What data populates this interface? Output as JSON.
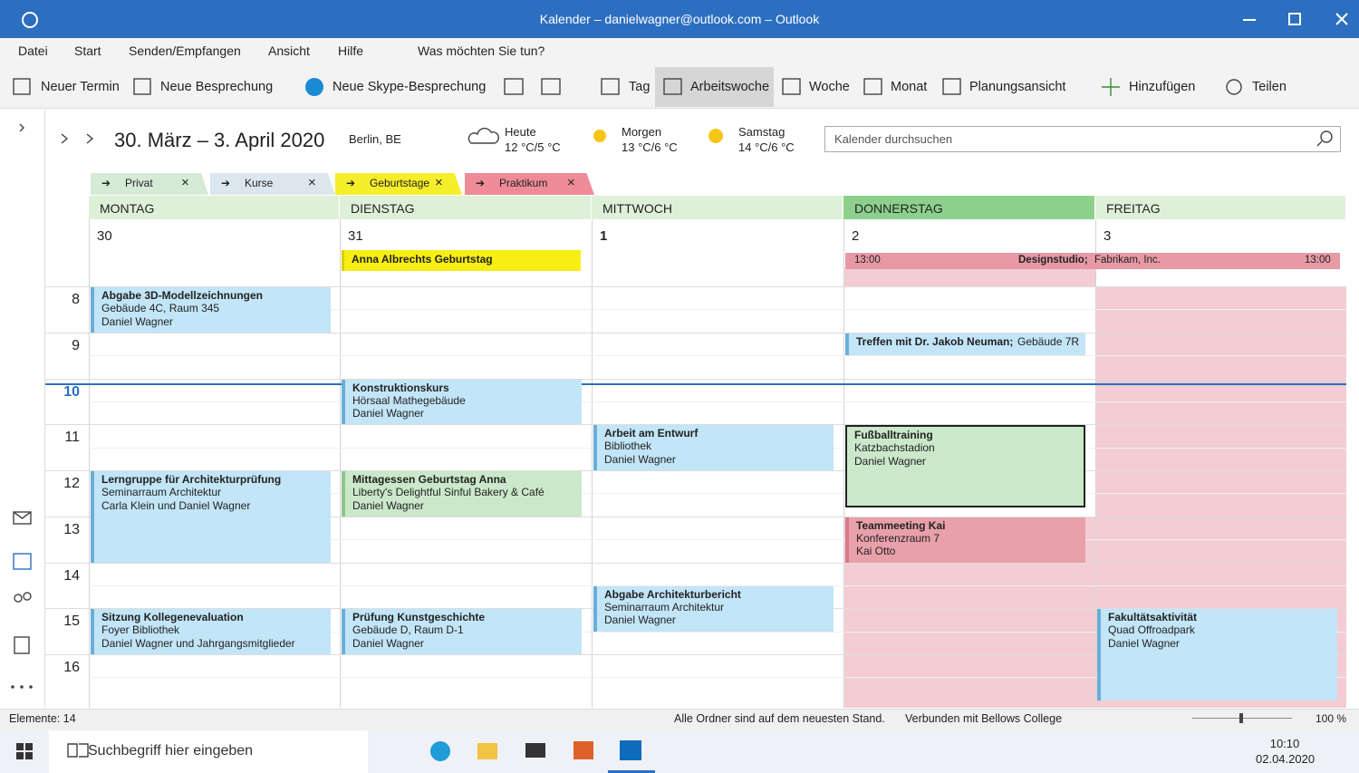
{
  "title_bar": {
    "title": "Kalender – danielwagner@outlook.com – Outlook"
  },
  "menu": [
    "Datei",
    "Start",
    "Senden/Empfangen",
    "Ansicht",
    "Hilfe",
    "Was möchten Sie tun?"
  ],
  "ribbon": [
    "Neuer Termin",
    "Neue Besprechung",
    "Neue Skype-Besprechung",
    "Tag",
    "Arbeitswoche",
    "Woche",
    "Monat",
    "Planungsansicht",
    "Hinzufügen",
    "Teilen"
  ],
  "nav": {
    "date_range": "30. März – 3. April 2020",
    "location": "Berlin, BE",
    "weather": [
      {
        "day": "Heute",
        "temp": "12 °C/5 °C"
      },
      {
        "day": "Morgen",
        "temp": "13 °C/6 °C"
      },
      {
        "day": "Samstag",
        "temp": "14 °C/6 °C"
      }
    ],
    "search": "Kalender durchsuchen"
  },
  "calendars": [
    "Privat",
    "Kurse",
    "Geburtstage",
    "Praktikum"
  ],
  "days": [
    {
      "name": "MONTAG",
      "date": "30"
    },
    {
      "name": "DIENSTAG",
      "date": "31"
    },
    {
      "name": "MITTWOCH",
      "date": "1"
    },
    {
      "name": "DONNERSTAG",
      "date": "2"
    },
    {
      "name": "FREITAG",
      "date": "3"
    }
  ],
  "hours": [
    "8",
    "9",
    "10",
    "11",
    "12",
    "13",
    "14",
    "15",
    "16"
  ],
  "all_day": {
    "birthday": {
      "title": "Anna Albrechts Geburtstag"
    },
    "designstudio": {
      "start": "13:00",
      "title": "Designstudio;",
      "location": "Fabrikam, Inc.",
      "end": "13:00"
    }
  },
  "events": [
    {
      "title": "Abgabe 3D-Modellzeichnungen",
      "lines": [
        "Gebäude 4C, Raum 345",
        "Daniel Wagner"
      ]
    },
    {
      "title": "Konstruktionskurs",
      "lines": [
        "Hörsaal Mathegebäude",
        "Daniel Wagner"
      ]
    },
    {
      "title": "Arbeit am Entwurf",
      "lines": [
        "Bibliothek",
        "Daniel Wagner"
      ]
    },
    {
      "title": "Treffen mit Dr. Jakob Neuman;",
      "lines": [
        "Gebäude 7R"
      ]
    },
    {
      "title": "Fußballtraining",
      "lines": [
        "Katzbachstadion",
        "Daniel Wagner"
      ]
    },
    {
      "title": "Lerngruppe für Architekturprüfung",
      "lines": [
        "Seminarraum Architektur",
        "Carla Klein und Daniel Wagner"
      ]
    },
    {
      "title": "Mittagessen Geburtstag Anna",
      "lines": [
        "Liberty's Delightful Sinful Bakery & Café",
        "Daniel Wagner"
      ]
    },
    {
      "title": "Teammeeting Kai",
      "lines": [
        "Konferenzraum 7",
        "Kai Otto"
      ]
    },
    {
      "title": "Abgabe Architekturbericht",
      "lines": [
        "Seminarraum Architektur",
        "Daniel Wagner"
      ]
    },
    {
      "title": "Sitzung Kollegenevaluation",
      "lines": [
        "Foyer Bibliothek",
        "Daniel Wagner und Jahrgangsmitglieder"
      ]
    },
    {
      "title": "Prüfung Kunstgeschichte",
      "lines": [
        "Gebäude D, Raum D-1",
        "Daniel Wagner"
      ]
    },
    {
      "title": "Fakultätsaktivität",
      "lines": [
        "Quad Offroadpark",
        "Daniel Wagner"
      ]
    }
  ],
  "status": {
    "items": "Elemente: 14",
    "sync": "Alle Ordner sind auf dem neuesten Stand.",
    "connection": "Verbunden mit Bellows College",
    "zoom": "100 %"
  },
  "taskbar": {
    "search": "Suchbegriff hier eingeben",
    "time": "10:10",
    "date": "02.04.2020"
  }
}
